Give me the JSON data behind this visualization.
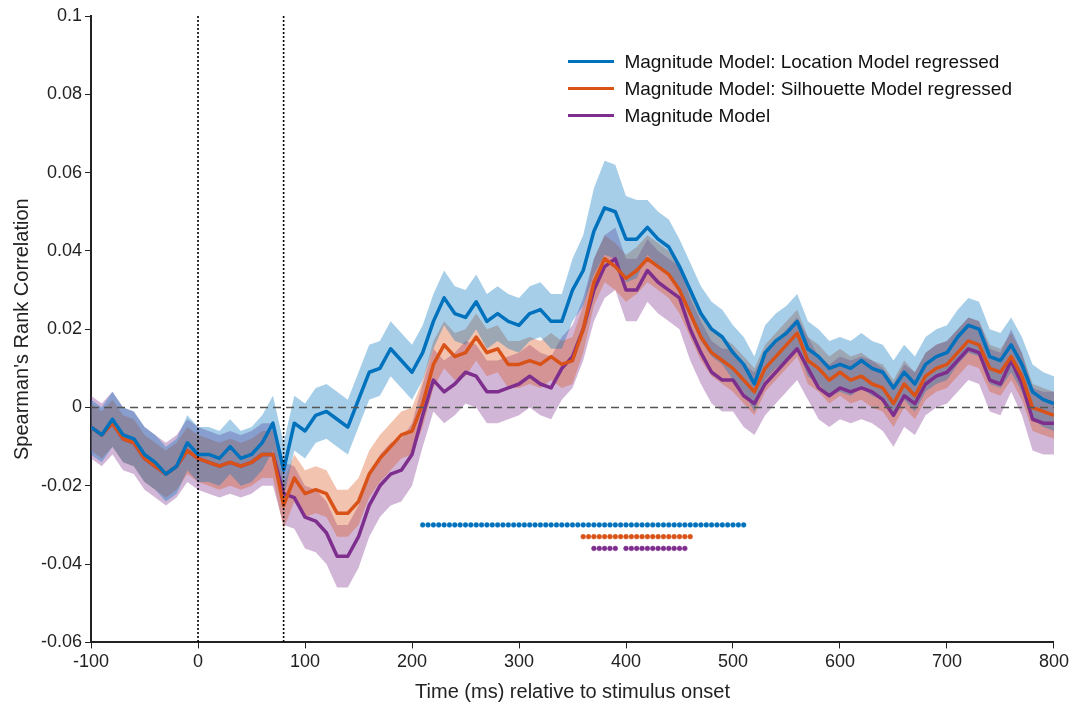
{
  "chart_data": {
    "type": "line",
    "xlabel": "Time (ms) relative to stimulus onset",
    "ylabel": "Spearman's Rank Correlation",
    "x": [
      -100,
      -90,
      -80,
      -70,
      -60,
      -50,
      -40,
      -30,
      -20,
      -10,
      0,
      10,
      20,
      30,
      40,
      50,
      60,
      70,
      80,
      90,
      100,
      110,
      120,
      130,
      140,
      150,
      160,
      170,
      180,
      190,
      200,
      210,
      220,
      230,
      240,
      250,
      260,
      270,
      280,
      290,
      300,
      310,
      320,
      330,
      340,
      350,
      360,
      370,
      380,
      390,
      400,
      410,
      420,
      430,
      440,
      450,
      460,
      470,
      480,
      490,
      500,
      510,
      520,
      530,
      540,
      550,
      560,
      570,
      580,
      590,
      600,
      610,
      620,
      630,
      640,
      650,
      660,
      670,
      680,
      690,
      700,
      710,
      720,
      730,
      740,
      750,
      760,
      770,
      780,
      790,
      800
    ],
    "xlim": [
      -100,
      800
    ],
    "xticks": [
      -100,
      0,
      100,
      200,
      300,
      400,
      500,
      600,
      700,
      800
    ],
    "ylim": [
      -0.06,
      0.1
    ],
    "yticks": [
      -0.06,
      -0.04,
      -0.02,
      0,
      0.02,
      0.04,
      0.06,
      0.08,
      0.1
    ],
    "grid": false,
    "legend": "top right",
    "marker": "none",
    "series": [
      {
        "name": "Magnitude Model: Location Model regressed",
        "color": "#0072bd",
        "values": [
          -0.005,
          -0.007,
          -0.003,
          -0.007,
          -0.008,
          -0.012,
          -0.014,
          -0.017,
          -0.015,
          -0.009,
          -0.012,
          -0.012,
          -0.013,
          -0.01,
          -0.013,
          -0.012,
          -0.009,
          -0.004,
          -0.016,
          -0.004,
          -0.006,
          -0.002,
          -0.001,
          -0.003,
          -0.005,
          0.002,
          0.009,
          0.01,
          0.015,
          0.012,
          0.009,
          0.014,
          0.022,
          0.028,
          0.024,
          0.023,
          0.027,
          0.022,
          0.024,
          0.022,
          0.021,
          0.024,
          0.025,
          0.022,
          0.022,
          0.03,
          0.035,
          0.045,
          0.051,
          0.05,
          0.043,
          0.043,
          0.046,
          0.043,
          0.041,
          0.036,
          0.03,
          0.024,
          0.02,
          0.018,
          0.014,
          0.011,
          0.006,
          0.014,
          0.017,
          0.019,
          0.022,
          0.015,
          0.013,
          0.01,
          0.011,
          0.01,
          0.012,
          0.01,
          0.009,
          0.005,
          0.009,
          0.006,
          0.011,
          0.013,
          0.014,
          0.018,
          0.021,
          0.02,
          0.013,
          0.012,
          0.016,
          0.011,
          0.004,
          0.002,
          0.001
        ],
        "lower": [
          -0.012,
          -0.014,
          -0.01,
          -0.014,
          -0.015,
          -0.019,
          -0.021,
          -0.024,
          -0.022,
          -0.016,
          -0.019,
          -0.019,
          -0.02,
          -0.017,
          -0.02,
          -0.019,
          -0.016,
          -0.011,
          -0.023,
          -0.011,
          -0.013,
          -0.009,
          -0.008,
          -0.01,
          -0.012,
          -0.005,
          0.002,
          0.003,
          0.008,
          0.005,
          0.002,
          0.007,
          0.015,
          0.021,
          0.017,
          0.016,
          0.02,
          0.015,
          0.017,
          0.015,
          0.014,
          0.017,
          0.018,
          0.015,
          0.015,
          0.022,
          0.026,
          0.034,
          0.039,
          0.038,
          0.032,
          0.033,
          0.039,
          0.036,
          0.034,
          0.029,
          0.023,
          0.017,
          0.013,
          0.011,
          0.007,
          0.004,
          -0.001,
          0.007,
          0.01,
          0.012,
          0.015,
          0.008,
          0.006,
          0.003,
          0.004,
          0.003,
          0.005,
          0.003,
          0.002,
          -0.002,
          0.002,
          -0.001,
          0.004,
          0.006,
          0.007,
          0.011,
          0.014,
          0.013,
          0.006,
          0.005,
          0.009,
          0.004,
          -0.003,
          -0.005,
          -0.006
        ],
        "upper": [
          0.002,
          0.0,
          0.004,
          0.0,
          -0.001,
          -0.005,
          -0.007,
          -0.01,
          -0.008,
          -0.002,
          -0.005,
          -0.005,
          -0.006,
          -0.003,
          -0.006,
          -0.005,
          -0.002,
          0.003,
          -0.009,
          0.003,
          0.001,
          0.005,
          0.006,
          0.004,
          0.002,
          0.009,
          0.016,
          0.017,
          0.022,
          0.019,
          0.016,
          0.021,
          0.029,
          0.035,
          0.031,
          0.03,
          0.034,
          0.029,
          0.031,
          0.029,
          0.028,
          0.031,
          0.032,
          0.029,
          0.029,
          0.038,
          0.044,
          0.056,
          0.063,
          0.062,
          0.054,
          0.053,
          0.053,
          0.05,
          0.048,
          0.043,
          0.037,
          0.031,
          0.027,
          0.025,
          0.021,
          0.018,
          0.013,
          0.021,
          0.024,
          0.026,
          0.029,
          0.022,
          0.02,
          0.017,
          0.018,
          0.017,
          0.019,
          0.017,
          0.016,
          0.012,
          0.016,
          0.013,
          0.018,
          0.02,
          0.021,
          0.025,
          0.028,
          0.027,
          0.02,
          0.019,
          0.023,
          0.018,
          0.011,
          0.009,
          0.008
        ]
      },
      {
        "name": "Magnitude Model: Silhouette Model regressed",
        "color": "#d95319",
        "values": [
          -0.005,
          -0.007,
          -0.004,
          -0.008,
          -0.009,
          -0.013,
          -0.015,
          -0.017,
          -0.015,
          -0.011,
          -0.013,
          -0.014,
          -0.015,
          -0.014,
          -0.015,
          -0.014,
          -0.012,
          -0.012,
          -0.025,
          -0.018,
          -0.022,
          -0.021,
          -0.022,
          -0.027,
          -0.027,
          -0.024,
          -0.017,
          -0.013,
          -0.01,
          -0.007,
          -0.006,
          0.001,
          0.011,
          0.016,
          0.013,
          0.014,
          0.018,
          0.014,
          0.015,
          0.011,
          0.011,
          0.012,
          0.011,
          0.013,
          0.011,
          0.012,
          0.02,
          0.032,
          0.038,
          0.036,
          0.033,
          0.035,
          0.038,
          0.036,
          0.034,
          0.03,
          0.024,
          0.018,
          0.014,
          0.012,
          0.01,
          0.007,
          0.004,
          0.01,
          0.013,
          0.016,
          0.019,
          0.012,
          0.01,
          0.007,
          0.009,
          0.007,
          0.008,
          0.006,
          0.005,
          0.001,
          0.006,
          0.003,
          0.008,
          0.01,
          0.011,
          0.014,
          0.017,
          0.016,
          0.01,
          0.009,
          0.013,
          0.008,
          0.0,
          -0.001,
          -0.002
        ],
        "lower": [
          -0.011,
          -0.013,
          -0.01,
          -0.014,
          -0.015,
          -0.019,
          -0.021,
          -0.023,
          -0.021,
          -0.017,
          -0.019,
          -0.02,
          -0.021,
          -0.02,
          -0.021,
          -0.02,
          -0.018,
          -0.018,
          -0.031,
          -0.024,
          -0.028,
          -0.027,
          -0.028,
          -0.033,
          -0.033,
          -0.03,
          -0.023,
          -0.019,
          -0.016,
          -0.013,
          -0.012,
          -0.005,
          0.005,
          0.01,
          0.007,
          0.008,
          0.012,
          0.008,
          0.009,
          0.005,
          0.005,
          0.006,
          0.005,
          0.007,
          0.005,
          0.006,
          0.014,
          0.026,
          0.032,
          0.03,
          0.027,
          0.029,
          0.032,
          0.03,
          0.028,
          0.024,
          0.018,
          0.012,
          0.008,
          0.006,
          0.004,
          0.001,
          -0.002,
          0.004,
          0.007,
          0.01,
          0.013,
          0.006,
          0.004,
          0.001,
          0.003,
          0.001,
          0.002,
          0.0,
          -0.001,
          -0.005,
          0.0,
          -0.003,
          0.002,
          0.004,
          0.005,
          0.008,
          0.011,
          0.01,
          0.004,
          0.003,
          0.007,
          0.002,
          -0.006,
          -0.007,
          -0.008
        ],
        "upper": [
          0.001,
          -0.001,
          0.002,
          -0.002,
          -0.003,
          -0.007,
          -0.009,
          -0.011,
          -0.009,
          -0.005,
          -0.007,
          -0.008,
          -0.009,
          -0.008,
          -0.009,
          -0.008,
          -0.006,
          -0.006,
          -0.019,
          -0.012,
          -0.016,
          -0.015,
          -0.016,
          -0.021,
          -0.021,
          -0.018,
          -0.011,
          -0.007,
          -0.004,
          -0.001,
          0.0,
          0.007,
          0.017,
          0.022,
          0.019,
          0.02,
          0.024,
          0.02,
          0.021,
          0.017,
          0.017,
          0.018,
          0.017,
          0.019,
          0.017,
          0.018,
          0.026,
          0.038,
          0.044,
          0.042,
          0.039,
          0.041,
          0.044,
          0.042,
          0.04,
          0.036,
          0.03,
          0.024,
          0.02,
          0.018,
          0.016,
          0.013,
          0.01,
          0.016,
          0.019,
          0.022,
          0.025,
          0.018,
          0.016,
          0.013,
          0.015,
          0.013,
          0.014,
          0.012,
          0.011,
          0.007,
          0.012,
          0.009,
          0.014,
          0.016,
          0.017,
          0.02,
          0.023,
          0.022,
          0.016,
          0.015,
          0.019,
          0.014,
          0.006,
          0.005,
          0.004
        ]
      },
      {
        "name": "Magnitude Model",
        "color": "#7e2f8e",
        "values": [
          -0.005,
          -0.007,
          -0.004,
          -0.008,
          -0.009,
          -0.013,
          -0.015,
          -0.017,
          -0.015,
          -0.011,
          -0.013,
          -0.014,
          -0.015,
          -0.014,
          -0.015,
          -0.014,
          -0.012,
          -0.012,
          -0.022,
          -0.023,
          -0.028,
          -0.029,
          -0.032,
          -0.038,
          -0.038,
          -0.033,
          -0.025,
          -0.02,
          -0.017,
          -0.016,
          -0.012,
          -0.002,
          0.007,
          0.004,
          0.006,
          0.009,
          0.008,
          0.004,
          0.004,
          0.005,
          0.006,
          0.008,
          0.006,
          0.005,
          0.01,
          0.013,
          0.02,
          0.03,
          0.036,
          0.038,
          0.03,
          0.03,
          0.035,
          0.032,
          0.03,
          0.028,
          0.02,
          0.014,
          0.009,
          0.007,
          0.007,
          0.003,
          0.001,
          0.006,
          0.009,
          0.012,
          0.015,
          0.01,
          0.005,
          0.003,
          0.005,
          0.004,
          0.005,
          0.004,
          0.002,
          -0.002,
          0.003,
          0.001,
          0.006,
          0.008,
          0.009,
          0.012,
          0.015,
          0.014,
          0.007,
          0.006,
          0.012,
          0.006,
          -0.003,
          -0.004,
          -0.004
        ],
        "lower": [
          -0.013,
          -0.015,
          -0.012,
          -0.016,
          -0.017,
          -0.021,
          -0.023,
          -0.025,
          -0.023,
          -0.019,
          -0.021,
          -0.022,
          -0.023,
          -0.022,
          -0.023,
          -0.022,
          -0.02,
          -0.02,
          -0.03,
          -0.031,
          -0.036,
          -0.037,
          -0.04,
          -0.046,
          -0.046,
          -0.041,
          -0.033,
          -0.028,
          -0.025,
          -0.024,
          -0.02,
          -0.01,
          -0.001,
          -0.004,
          -0.002,
          0.001,
          0.0,
          -0.004,
          -0.004,
          -0.003,
          -0.002,
          0.0,
          -0.002,
          -0.003,
          0.002,
          0.005,
          0.012,
          0.022,
          0.028,
          0.03,
          0.022,
          0.022,
          0.027,
          0.024,
          0.022,
          0.02,
          0.012,
          0.006,
          0.001,
          -0.001,
          -0.001,
          -0.005,
          -0.007,
          -0.002,
          0.001,
          0.004,
          0.007,
          0.002,
          -0.003,
          -0.005,
          -0.003,
          -0.004,
          -0.003,
          -0.004,
          -0.006,
          -0.01,
          -0.005,
          -0.007,
          -0.002,
          0.0,
          0.001,
          0.004,
          0.007,
          0.006,
          -0.001,
          -0.002,
          0.004,
          -0.002,
          -0.011,
          -0.012,
          -0.012
        ],
        "upper": [
          0.003,
          0.001,
          0.004,
          0.0,
          -0.001,
          -0.005,
          -0.007,
          -0.009,
          -0.007,
          -0.003,
          -0.005,
          -0.006,
          -0.007,
          -0.006,
          -0.007,
          -0.006,
          -0.004,
          -0.004,
          -0.014,
          -0.015,
          -0.02,
          -0.021,
          -0.024,
          -0.03,
          -0.03,
          -0.025,
          -0.017,
          -0.012,
          -0.009,
          -0.008,
          -0.004,
          0.006,
          0.015,
          0.012,
          0.014,
          0.017,
          0.016,
          0.012,
          0.012,
          0.013,
          0.014,
          0.016,
          0.014,
          0.013,
          0.018,
          0.021,
          0.028,
          0.038,
          0.044,
          0.046,
          0.038,
          0.038,
          0.043,
          0.04,
          0.038,
          0.036,
          0.028,
          0.022,
          0.017,
          0.015,
          0.015,
          0.011,
          0.009,
          0.014,
          0.017,
          0.02,
          0.023,
          0.018,
          0.013,
          0.011,
          0.013,
          0.012,
          0.013,
          0.012,
          0.01,
          0.006,
          0.011,
          0.009,
          0.014,
          0.016,
          0.017,
          0.02,
          0.023,
          0.022,
          0.015,
          0.014,
          0.02,
          0.014,
          0.005,
          0.004,
          0.004
        ]
      },
      {
        "type": "scatter",
        "marker": "circle",
        "color": "#0072bd",
        "x": [
          210,
          215,
          220,
          225,
          230,
          235,
          240,
          245,
          250,
          255,
          260,
          265,
          270,
          275,
          280,
          285,
          290,
          295,
          300,
          305,
          310,
          315,
          320,
          325,
          330,
          335,
          340,
          345,
          350,
          355,
          360,
          365,
          370,
          375,
          380,
          385,
          390,
          395,
          400,
          405,
          410,
          415,
          420,
          425,
          430,
          435,
          440,
          445,
          450,
          455,
          460,
          465,
          470,
          475,
          480,
          485,
          490,
          495,
          500,
          505,
          510
        ],
        "values": [
          -0.03,
          -0.03,
          -0.03,
          -0.03,
          -0.03,
          -0.03,
          -0.03,
          -0.03,
          -0.03,
          -0.03,
          -0.03,
          -0.03,
          -0.03,
          -0.03,
          -0.03,
          -0.03,
          -0.03,
          -0.03,
          -0.03,
          -0.03,
          -0.03,
          -0.03,
          -0.03,
          -0.03,
          -0.03,
          -0.03,
          -0.03,
          -0.03,
          -0.03,
          -0.03,
          -0.03,
          -0.03,
          -0.03,
          -0.03,
          -0.03,
          -0.03,
          -0.03,
          -0.03,
          -0.03,
          -0.03,
          -0.03,
          -0.03,
          -0.03,
          -0.03,
          -0.03,
          -0.03,
          -0.03,
          -0.03,
          -0.03,
          -0.03,
          -0.03,
          -0.03,
          -0.03,
          -0.03,
          -0.03,
          -0.03,
          -0.03,
          -0.03,
          -0.03,
          -0.03,
          -0.03
        ]
      },
      {
        "type": "scatter",
        "marker": "circle",
        "color": "#d95319",
        "x": [
          360,
          365,
          370,
          375,
          380,
          385,
          390,
          395,
          400,
          405,
          410,
          415,
          420,
          425,
          430,
          435,
          440,
          445,
          450,
          455,
          460
        ],
        "values": [
          -0.033,
          -0.033,
          -0.033,
          -0.033,
          -0.033,
          -0.033,
          -0.033,
          -0.033,
          -0.033,
          -0.033,
          -0.033,
          -0.033,
          -0.033,
          -0.033,
          -0.033,
          -0.033,
          -0.033,
          -0.033,
          -0.033,
          -0.033,
          -0.033
        ]
      },
      {
        "type": "scatter",
        "marker": "circle",
        "color": "#7e2f8e",
        "x": [
          370,
          375,
          380,
          385,
          390,
          400,
          405,
          410,
          415,
          420,
          425,
          430,
          435,
          440,
          445,
          450,
          455
        ],
        "values": [
          -0.036,
          -0.036,
          -0.036,
          -0.036,
          -0.036,
          -0.036,
          -0.036,
          -0.036,
          -0.036,
          -0.036,
          -0.036,
          -0.036,
          -0.036,
          -0.036,
          -0.036,
          -0.036,
          -0.036
        ]
      }
    ],
    "ref_lines": [
      {
        "axis": "x",
        "value": 0,
        "color": "#000000",
        "line_style": "dotted"
      },
      {
        "axis": "x",
        "value": 80,
        "color": "#000000",
        "line_style": "dotted"
      },
      {
        "axis": "y",
        "value": 0,
        "color": "#555555",
        "line_style": "dashed"
      }
    ]
  }
}
